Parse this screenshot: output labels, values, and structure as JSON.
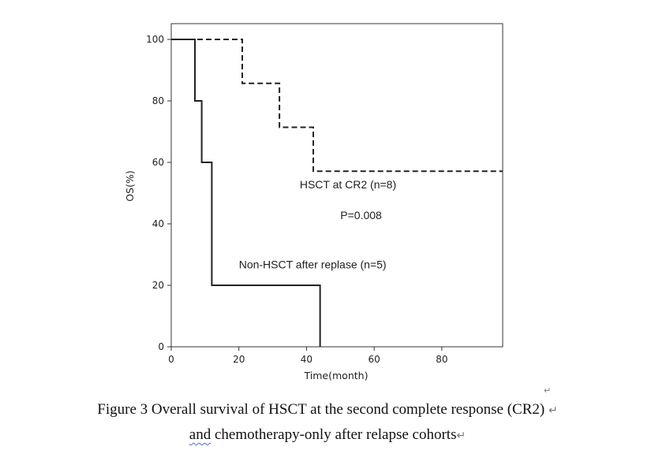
{
  "chart_data": {
    "type": "line",
    "title": "",
    "xlabel": "Time(month)",
    "ylabel": "OS(%)",
    "xlim": [
      0,
      98
    ],
    "ylim": [
      0,
      100
    ],
    "xticks": [
      0,
      20,
      40,
      60,
      80
    ],
    "yticks": [
      0,
      20,
      40,
      60,
      80,
      100
    ],
    "grid": false,
    "step": true,
    "series": [
      {
        "name": "HSCT at CR2 (n=8)",
        "style": "dashed",
        "color": "#222222",
        "x": [
          0,
          21,
          21,
          32,
          32,
          42,
          42,
          98
        ],
        "y": [
          100,
          100,
          85.7,
          85.7,
          71.4,
          71.4,
          57.1,
          57.1
        ]
      },
      {
        "name": "Non-HSCT after replase (n=5)",
        "style": "solid",
        "color": "#222222",
        "x": [
          0,
          7,
          7,
          9,
          9,
          12,
          12,
          44,
          44
        ],
        "y": [
          100,
          100,
          80,
          80,
          60,
          60,
          20,
          20,
          0
        ]
      }
    ],
    "annotations": [
      {
        "text": "HSCT at CR2 (n=8)",
        "x": 38,
        "y": 51.5
      },
      {
        "text": "P=0.008",
        "x": 50,
        "y": 41.5
      },
      {
        "text": "Non-HSCT after replase (n=5)",
        "x": 20,
        "y": 25.5
      }
    ]
  },
  "caption": {
    "line1": "Figure 3 Overall survival of HSCT at the second complete response (CR2)",
    "line2_word": "and",
    "line2_rest": " chemotherapy-only after relapse cohorts",
    "mark": "↵"
  }
}
